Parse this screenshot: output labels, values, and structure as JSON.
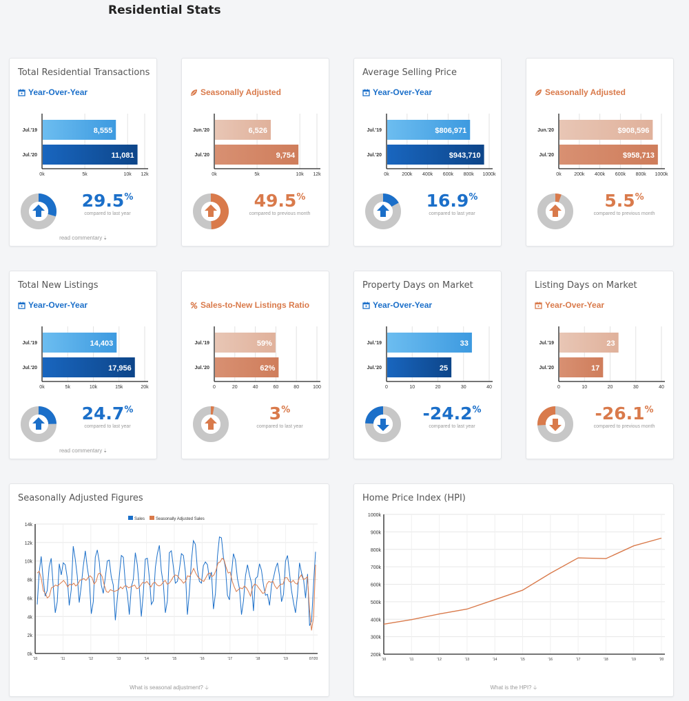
{
  "page_title": "Residential Stats",
  "colors": {
    "blue": "#1b6fc9",
    "orange": "#d97a4b",
    "blue_light": "#5cb3ea",
    "blue_dark": "#0c4a94",
    "orange_light": "#e9c1ae",
    "orange_dark": "#d0876a",
    "donut_gray": "#c7c7c7"
  },
  "cards": [
    {
      "title": "Total Residential Transactions",
      "subtitle": "Year-Over-Year",
      "theme": "blue",
      "icon": "calendar-icon",
      "rows": [
        {
          "label": "Jul.'19",
          "value": 8555,
          "display": "8,555"
        },
        {
          "label": "Jul.'20",
          "value": 11081,
          "display": "11,081"
        }
      ],
      "axis_max": 12000,
      "ticks": [
        "0k",
        "5k",
        "10k",
        "12k"
      ],
      "tick_vals": [
        0,
        5000,
        10000,
        12000
      ],
      "pct": "29.5",
      "pct_sign": "%",
      "direction": "up",
      "fraction": 0.295,
      "compare": "compared to last year",
      "link": "read commentary"
    },
    {
      "title": "",
      "subtitle": "Seasonally Adjusted",
      "theme": "orange",
      "icon": "leaf-icon",
      "rows": [
        {
          "label": "Jun.'20",
          "value": 6526,
          "display": "6,526"
        },
        {
          "label": "Jul.'20",
          "value": 9754,
          "display": "9,754"
        }
      ],
      "axis_max": 12000,
      "ticks": [
        "0k",
        "5k",
        "10k",
        "12k"
      ],
      "tick_vals": [
        0,
        5000,
        10000,
        12000
      ],
      "pct": "49.5",
      "pct_sign": "%",
      "direction": "up",
      "fraction": 0.495,
      "compare": "compared to previous month",
      "link": ""
    },
    {
      "title": "Average Selling Price",
      "subtitle": "Year-Over-Year",
      "theme": "blue",
      "icon": "calendar-icon",
      "rows": [
        {
          "label": "Jul.'19",
          "value": 806971,
          "display": "$806,971"
        },
        {
          "label": "Jul.'20",
          "value": 943710,
          "display": "$943,710"
        }
      ],
      "axis_max": 1000000,
      "ticks": [
        "0k",
        "200k",
        "400k",
        "600k",
        "800k",
        "1000k"
      ],
      "tick_vals": [
        0,
        200000,
        400000,
        600000,
        800000,
        1000000
      ],
      "pct": "16.9",
      "pct_sign": "%",
      "direction": "up",
      "fraction": 0.169,
      "compare": "compared to last year",
      "link": ""
    },
    {
      "title": "",
      "subtitle": "Seasonally Adjusted",
      "theme": "orange",
      "icon": "leaf-icon",
      "rows": [
        {
          "label": "Jun.'20",
          "value": 908596,
          "display": "$908,596"
        },
        {
          "label": "Jul.'20",
          "value": 958713,
          "display": "$958,713"
        }
      ],
      "axis_max": 1000000,
      "ticks": [
        "0k",
        "200k",
        "400k",
        "600k",
        "800k",
        "1000k"
      ],
      "tick_vals": [
        0,
        200000,
        400000,
        600000,
        800000,
        1000000
      ],
      "pct": "5.5",
      "pct_sign": "%",
      "direction": "up",
      "fraction": 0.055,
      "compare": "compared to previous month",
      "link": ""
    },
    {
      "title": "Total New Listings",
      "subtitle": "Year-Over-Year",
      "theme": "blue",
      "icon": "calendar-icon",
      "rows": [
        {
          "label": "Jul.'19",
          "value": 14403,
          "display": "14,403"
        },
        {
          "label": "Jul.'20",
          "value": 17956,
          "display": "17,956"
        }
      ],
      "axis_max": 20000,
      "ticks": [
        "0k",
        "5k",
        "10k",
        "15k",
        "20k"
      ],
      "tick_vals": [
        0,
        5000,
        10000,
        15000,
        20000
      ],
      "pct": "24.7",
      "pct_sign": "%",
      "direction": "up",
      "fraction": 0.247,
      "compare": "compared to last year",
      "link": "read commentary"
    },
    {
      "title": "",
      "subtitle": "Sales-to-New Listings Ratio",
      "theme": "orange",
      "icon": "percent-icon",
      "rows": [
        {
          "label": "Jul.'19",
          "value": 59,
          "display": "59%"
        },
        {
          "label": "Jul.'20",
          "value": 62,
          "display": "62%"
        }
      ],
      "axis_max": 100,
      "ticks": [
        "0",
        "20",
        "40",
        "60",
        "80",
        "100"
      ],
      "tick_vals": [
        0,
        20,
        40,
        60,
        80,
        100
      ],
      "pct": "3",
      "pct_sign": "%",
      "direction": "up",
      "fraction": 0.03,
      "compare": "compared to last year",
      "link": ""
    },
    {
      "title": "Property Days on Market",
      "subtitle": "Year-Over-Year",
      "theme": "blue",
      "icon": "calendar-icon",
      "rows": [
        {
          "label": "Jul.'19",
          "value": 33,
          "display": "33"
        },
        {
          "label": "Jul.'20",
          "value": 25,
          "display": "25"
        }
      ],
      "axis_max": 40,
      "ticks": [
        "0",
        "10",
        "20",
        "30",
        "40"
      ],
      "tick_vals": [
        0,
        10,
        20,
        30,
        40
      ],
      "pct": "-24.2",
      "pct_sign": "%",
      "direction": "down",
      "fraction": 0.242,
      "compare": "compared to last year",
      "link": ""
    },
    {
      "title": "Listing Days on Market",
      "subtitle": "Year-Over-Year",
      "theme": "orange",
      "icon": "calendar-icon",
      "rows": [
        {
          "label": "Jul.'19",
          "value": 23,
          "display": "23"
        },
        {
          "label": "Jul.'20",
          "value": 17,
          "display": "17"
        }
      ],
      "axis_max": 40,
      "ticks": [
        "0",
        "10",
        "20",
        "30",
        "40"
      ],
      "tick_vals": [
        0,
        10,
        20,
        30,
        40
      ],
      "pct": "-26.1",
      "pct_sign": "%",
      "direction": "down",
      "fraction": 0.261,
      "compare": "compared to previous month",
      "link": ""
    }
  ],
  "seasonal": {
    "title": "Seasonally Adjusted Figures",
    "link": "What is seasonal adjustment?",
    "legend": [
      "Sales",
      "Seasonally Adjusted Sales"
    ]
  },
  "hpi": {
    "title": "Home Price Index (HPI)",
    "link": "What is the HPI?"
  },
  "chart_data": [
    {
      "type": "bar",
      "categories": [
        "Jul.'19",
        "Jul.'20"
      ],
      "values": [
        8555,
        11081
      ],
      "xlim": [
        0,
        12000
      ]
    },
    {
      "type": "bar",
      "categories": [
        "Jun.'20",
        "Jul.'20"
      ],
      "values": [
        6526,
        9754
      ],
      "xlim": [
        0,
        12000
      ]
    },
    {
      "type": "bar",
      "categories": [
        "Jul.'19",
        "Jul.'20"
      ],
      "values": [
        806971,
        943710
      ],
      "xlim": [
        0,
        1000000
      ]
    },
    {
      "type": "bar",
      "categories": [
        "Jun.'20",
        "Jul.'20"
      ],
      "values": [
        908596,
        958713
      ],
      "xlim": [
        0,
        1000000
      ]
    },
    {
      "type": "bar",
      "categories": [
        "Jul.'19",
        "Jul.'20"
      ],
      "values": [
        14403,
        17956
      ],
      "xlim": [
        0,
        20000
      ]
    },
    {
      "type": "bar",
      "categories": [
        "Jul.'19",
        "Jul.'20"
      ],
      "values": [
        59,
        62
      ],
      "xlim": [
        0,
        100
      ]
    },
    {
      "type": "bar",
      "categories": [
        "Jul.'19",
        "Jul.'20"
      ],
      "values": [
        33,
        25
      ],
      "xlim": [
        0,
        40
      ]
    },
    {
      "type": "bar",
      "categories": [
        "Jul.'19",
        "Jul.'20"
      ],
      "values": [
        23,
        17
      ],
      "xlim": [
        0,
        40
      ]
    },
    {
      "type": "line",
      "title": "Seasonally Adjusted Figures",
      "x_ticks": [
        "'10",
        "'11",
        "'12",
        "'13",
        "'14",
        "'15",
        "'16",
        "'17",
        "'18",
        "'19",
        "07/20"
      ],
      "y_ticks": [
        "0k",
        "2k",
        "4k",
        "6k",
        "8k",
        "10k",
        "12k",
        "14k"
      ],
      "ylim": [
        0,
        14000
      ],
      "series": [
        {
          "name": "Sales",
          "values": [
            5300,
            8800,
            10500,
            8000,
            6200,
            6800,
            9400,
            10300,
            7200,
            4400,
            5600,
            9700,
            8500,
            9800,
            9600,
            8200,
            5200,
            6900,
            11600,
            10200,
            8400,
            5500,
            7300,
            9400,
            11100,
            9300,
            7900,
            4300,
            5600,
            10400,
            11200,
            9900,
            7400,
            6500,
            8200,
            10000,
            10100,
            8300,
            7400,
            3600,
            6000,
            8400,
            10600,
            10400,
            7600,
            6500,
            4200,
            7200,
            8000,
            10900,
            9600,
            7100,
            4000,
            6500,
            10200,
            10300,
            8200,
            5300,
            5700,
            9300,
            10800,
            11700,
            8900,
            7500,
            4400,
            5700,
            10900,
            11100,
            9400,
            7600,
            7800,
            9100,
            10800,
            10600,
            8800,
            4200,
            6700,
            10000,
            12200,
            11800,
            9100,
            7800,
            7600,
            9500,
            9900,
            9600,
            8000,
            8800,
            4800,
            6500,
            10500,
            12600,
            12500,
            10400,
            9300,
            6300,
            5800,
            8600,
            10800,
            10100,
            8100,
            7000,
            4200,
            5700,
            8400,
            9600,
            8500,
            7600,
            4600,
            8100,
            8300,
            9700,
            9000,
            7400,
            6300,
            6400,
            5200,
            7400,
            8200,
            9200,
            9800,
            8400,
            5600,
            6400,
            10000,
            10600,
            8700,
            6800,
            5500,
            4400,
            6400,
            9800,
            8700,
            8000,
            6000,
            8600,
            3000,
            3500,
            7500,
            11000
          ]
        },
        {
          "name": "Seasonally Adjusted Sales",
          "values": [
            8700,
            8900,
            8100,
            6800,
            6500,
            6000,
            6200,
            7100,
            7200,
            7400,
            7300,
            7500,
            7700,
            7900,
            7600,
            7200,
            7500,
            7400,
            7600,
            7300,
            7500,
            7900,
            8000,
            8100,
            7900,
            8200,
            8400,
            8200,
            7500,
            7800,
            8600,
            8700,
            8300,
            7400,
            6700,
            6600,
            6900,
            6800,
            6700,
            6800,
            6900,
            7200,
            7000,
            7300,
            7300,
            7100,
            7200,
            7300,
            7400,
            7000,
            7100,
            7400,
            7700,
            7600,
            7800,
            7500,
            7200,
            7600,
            7700,
            7400,
            7300,
            7400,
            7700,
            7900,
            7500,
            7600,
            7900,
            8300,
            8500,
            8400,
            8100,
            7900,
            7600,
            7800,
            8400,
            8300,
            8700,
            9200,
            8700,
            8300,
            8100,
            7900,
            7800,
            8200,
            8600,
            8700,
            8300,
            8500,
            9000,
            9800,
            9900,
            10300,
            10100,
            9300,
            8700,
            8800,
            7800,
            7200,
            6700,
            6900,
            7100,
            7000,
            7300,
            7100,
            6700,
            6200,
            7200,
            7500,
            7400,
            7100,
            6800,
            6500,
            6600,
            7500,
            7800,
            7700,
            7800,
            7300,
            7000,
            7300,
            7500,
            7500,
            8200,
            8200,
            7800,
            7700,
            7900,
            7600,
            7500,
            8200,
            8500,
            8000,
            8100,
            8300,
            4800,
            2500,
            3900,
            9600
          ]
        }
      ]
    },
    {
      "type": "line",
      "title": "Home Price Index (HPI)",
      "x_ticks": [
        "'10",
        "'11",
        "'12",
        "'13",
        "'14",
        "'15",
        "'16",
        "'17",
        "'18",
        "'19",
        "'20"
      ],
      "y_ticks": [
        "200k",
        "300k",
        "400k",
        "500k",
        "600k",
        "700k",
        "800k",
        "900k",
        "1000k"
      ],
      "ylim": [
        200000,
        1000000
      ],
      "series": [
        {
          "name": "HPI",
          "values": [
            372000,
            398000,
            430000,
            458000,
            512000,
            566000,
            663000,
            751000,
            747000,
            820000,
            864000
          ]
        }
      ]
    }
  ]
}
